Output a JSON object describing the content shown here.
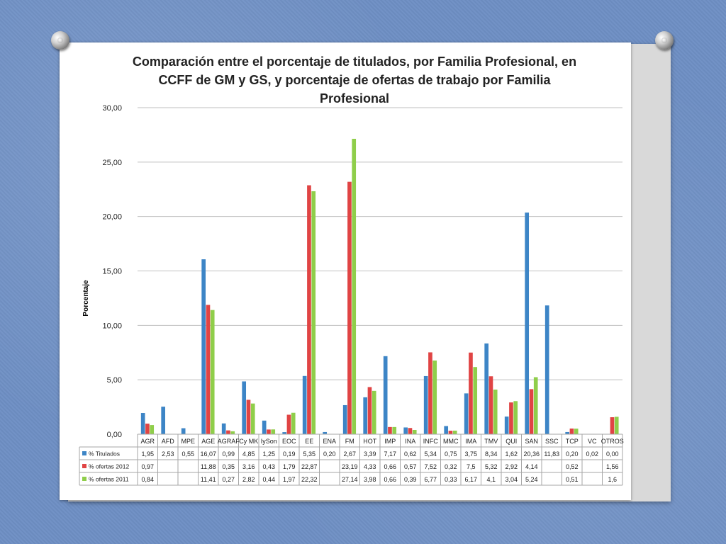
{
  "colors": {
    "titulados": "#3d85c6",
    "ofertas2012": "#e04444",
    "ofertas2011": "#8fce4a",
    "grid": "#bfbfbf",
    "table_border": "#a6a6a6"
  },
  "chart_data": {
    "type": "bar",
    "title": "Comparación entre el porcentaje de titulados, por Familia Profesional, en CCFF de GM y GS, y porcentaje de ofertas  de trabajo por Familia Profesional",
    "ylabel": "Porcentaje",
    "xlabel": "",
    "ylim": [
      0,
      30
    ],
    "yticks": [
      "0,00",
      "5,00",
      "10,00",
      "15,00",
      "20,00",
      "25,00",
      "30,00"
    ],
    "grid": true,
    "legend": "data-table",
    "categories": [
      "AGR",
      "AFD",
      "MPE",
      "AGE",
      "AGRAF",
      "Cy MK",
      "IySon",
      "EOC",
      "EE",
      "ENA",
      "FM",
      "HOT",
      "IMP",
      "INA",
      "INFC",
      "MMC",
      "IMA",
      "TMV",
      "QUI",
      "SAN",
      "SSC",
      "TCP",
      "VC",
      "OTROS"
    ],
    "series": [
      {
        "name": "% Titulados",
        "values": [
          1.95,
          2.53,
          0.55,
          16.07,
          0.99,
          4.85,
          1.25,
          0.19,
          5.35,
          0.2,
          2.67,
          3.39,
          7.17,
          0.62,
          5.34,
          0.75,
          3.75,
          8.34,
          1.62,
          20.36,
          11.83,
          0.2,
          0.02,
          0.0
        ],
        "labels": [
          "1,95",
          "2,53",
          "0,55",
          "16,07",
          "0,99",
          "4,85",
          "1,25",
          "0,19",
          "5,35",
          "0,20",
          "2,67",
          "3,39",
          "7,17",
          "0,62",
          "5,34",
          "0,75",
          "3,75",
          "8,34",
          "1,62",
          "20,36",
          "11,83",
          "0,20",
          "0,02",
          "0,00"
        ]
      },
      {
        "name": "% ofertas 2012",
        "values": [
          0.97,
          null,
          null,
          11.88,
          0.35,
          3.16,
          0.43,
          1.79,
          22.87,
          null,
          23.19,
          4.33,
          0.66,
          0.57,
          7.52,
          0.32,
          7.5,
          5.32,
          2.92,
          4.14,
          null,
          0.52,
          null,
          1.56
        ],
        "labels": [
          "0,97",
          "",
          "",
          "11,88",
          "0,35",
          "3,16",
          "0,43",
          "1,79",
          "22,87",
          "",
          "23,19",
          "4,33",
          "0,66",
          "0,57",
          "7,52",
          "0,32",
          "7,5",
          "5,32",
          "2,92",
          "4,14",
          "",
          "0,52",
          "",
          "1,56"
        ]
      },
      {
        "name": "% ofertas 2011",
        "values": [
          0.84,
          null,
          null,
          11.41,
          0.27,
          2.82,
          0.44,
          1.97,
          22.32,
          null,
          27.14,
          3.98,
          0.66,
          0.39,
          6.77,
          0.33,
          6.17,
          4.1,
          3.04,
          5.24,
          null,
          0.51,
          null,
          1.6
        ],
        "labels": [
          "0,84",
          "",
          "",
          "11,41",
          "0,27",
          "2,82",
          "0,44",
          "1,97",
          "22,32",
          "",
          "27,14",
          "3,98",
          "0,66",
          "0,39",
          "6,77",
          "0,33",
          "6,17",
          "4,1",
          "3,04",
          "5,24",
          "",
          "0,51",
          "",
          "1,6"
        ]
      }
    ]
  }
}
